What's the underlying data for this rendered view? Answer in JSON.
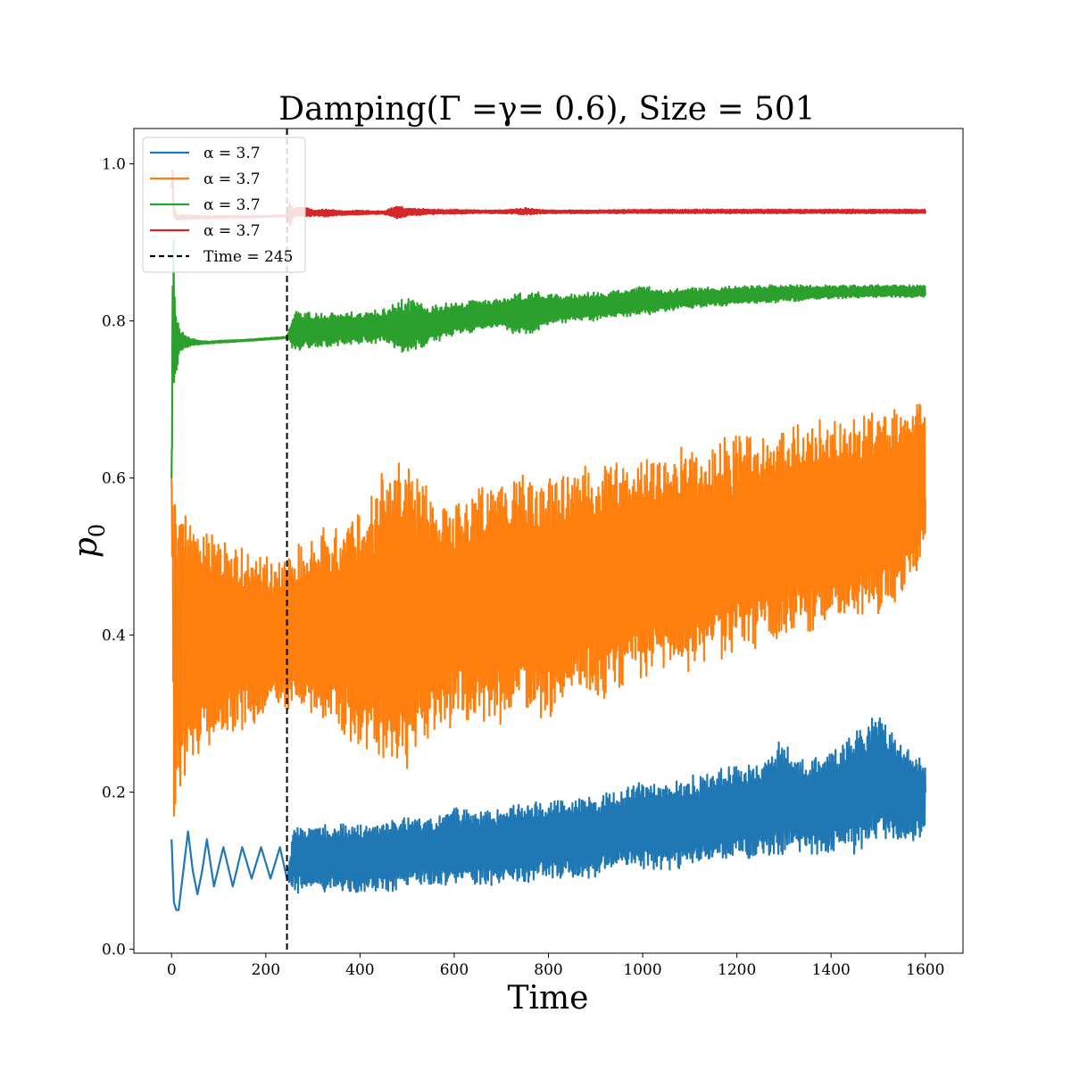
{
  "chart_data": {
    "type": "line",
    "title": "Damping(Γ =γ= 0.6), Size = 501",
    "xlabel": "Time",
    "ylabel": "p",
    "ylabel_subscript": "0",
    "xlim": [
      -80,
      1680
    ],
    "ylim": [
      -0.005,
      1.045
    ],
    "x_ticks": [
      0,
      200,
      400,
      600,
      800,
      1000,
      1200,
      1400,
      1600
    ],
    "x_tick_labels": [
      "0",
      "200",
      "400",
      "600",
      "800",
      "1000",
      "1200",
      "1400",
      "1600"
    ],
    "y_ticks": [
      0.0,
      0.2,
      0.4,
      0.6,
      0.8,
      1.0
    ],
    "y_tick_labels": [
      "0.0",
      "0.2",
      "0.4",
      "0.6",
      "0.8",
      "1.0"
    ],
    "grid": false,
    "legend_position": "top-left",
    "vline": {
      "x": 245,
      "label": "Time = 245",
      "color": "#000000",
      "style": "dashed"
    },
    "series": [
      {
        "name": "α = 3.7",
        "color": "#1f77b4",
        "x": [
          0,
          5,
          10,
          15,
          25,
          35,
          45,
          55,
          65,
          75,
          90,
          110,
          130,
          150,
          170,
          190,
          210,
          230,
          245,
          260,
          280,
          300,
          350,
          400,
          450,
          500,
          550,
          600,
          650,
          700,
          750,
          800,
          850,
          900,
          950,
          1000,
          1050,
          1100,
          1150,
          1200,
          1250,
          1300,
          1350,
          1400,
          1450,
          1500,
          1550,
          1600
        ],
        "y": [
          0.14,
          0.06,
          0.05,
          0.05,
          0.1,
          0.15,
          0.1,
          0.07,
          0.1,
          0.14,
          0.08,
          0.13,
          0.08,
          0.13,
          0.09,
          0.13,
          0.09,
          0.13,
          0.09,
          0.12,
          0.1,
          0.11,
          0.1,
          0.11,
          0.12,
          0.11,
          0.11,
          0.12,
          0.11,
          0.12,
          0.12,
          0.13,
          0.12,
          0.13,
          0.13,
          0.14,
          0.14,
          0.15,
          0.15,
          0.15,
          0.16,
          0.17,
          0.16,
          0.17,
          0.18,
          0.19,
          0.18,
          0.16
        ],
        "lower": [
          0.14,
          0.06,
          0.05,
          0.05,
          0.1,
          0.15,
          0.1,
          0.07,
          0.1,
          0.14,
          0.08,
          0.13,
          0.08,
          0.13,
          0.09,
          0.13,
          0.09,
          0.13,
          0.09,
          0.07,
          0.07,
          0.07,
          0.07,
          0.07,
          0.07,
          0.08,
          0.08,
          0.08,
          0.08,
          0.08,
          0.08,
          0.09,
          0.09,
          0.09,
          0.1,
          0.1,
          0.1,
          0.1,
          0.11,
          0.11,
          0.11,
          0.12,
          0.12,
          0.12,
          0.12,
          0.13,
          0.13,
          0.14
        ],
        "upper": [
          0.14,
          0.06,
          0.05,
          0.05,
          0.1,
          0.15,
          0.1,
          0.07,
          0.1,
          0.14,
          0.08,
          0.13,
          0.08,
          0.13,
          0.09,
          0.13,
          0.09,
          0.13,
          0.09,
          0.16,
          0.16,
          0.16,
          0.16,
          0.16,
          0.17,
          0.17,
          0.17,
          0.18,
          0.18,
          0.18,
          0.19,
          0.19,
          0.19,
          0.2,
          0.2,
          0.22,
          0.22,
          0.22,
          0.23,
          0.24,
          0.24,
          0.27,
          0.24,
          0.26,
          0.28,
          0.31,
          0.26,
          0.24
        ]
      },
      {
        "name": "α = 3.7",
        "color": "#ff7f0e",
        "x": [
          0,
          5,
          10,
          20,
          30,
          40,
          50,
          60,
          80,
          100,
          130,
          160,
          200,
          245,
          260,
          300,
          350,
          400,
          450,
          500,
          550,
          600,
          650,
          700,
          750,
          800,
          850,
          900,
          950,
          1000,
          1050,
          1100,
          1150,
          1200,
          1250,
          1300,
          1350,
          1400,
          1450,
          1500,
          1550,
          1600
        ],
        "y": [
          0.6,
          0.35,
          0.36,
          0.37,
          0.37,
          0.37,
          0.37,
          0.38,
          0.38,
          0.38,
          0.39,
          0.39,
          0.39,
          0.4,
          0.4,
          0.4,
          0.4,
          0.4,
          0.41,
          0.41,
          0.42,
          0.42,
          0.43,
          0.43,
          0.44,
          0.44,
          0.45,
          0.46,
          0.46,
          0.47,
          0.48,
          0.49,
          0.5,
          0.51,
          0.52,
          0.53,
          0.54,
          0.55,
          0.56,
          0.57,
          0.58,
          0.6
        ],
        "lower": [
          0.6,
          0.15,
          0.17,
          0.19,
          0.21,
          0.22,
          0.23,
          0.24,
          0.25,
          0.26,
          0.27,
          0.28,
          0.29,
          0.3,
          0.3,
          0.28,
          0.27,
          0.25,
          0.23,
          0.22,
          0.27,
          0.28,
          0.28,
          0.28,
          0.3,
          0.29,
          0.31,
          0.31,
          0.33,
          0.34,
          0.35,
          0.35,
          0.36,
          0.38,
          0.38,
          0.39,
          0.4,
          0.41,
          0.41,
          0.42,
          0.44,
          0.5
        ],
        "upper": [
          0.6,
          0.58,
          0.57,
          0.56,
          0.56,
          0.55,
          0.55,
          0.54,
          0.53,
          0.53,
          0.52,
          0.51,
          0.5,
          0.5,
          0.51,
          0.54,
          0.55,
          0.57,
          0.62,
          0.63,
          0.59,
          0.58,
          0.59,
          0.6,
          0.61,
          0.61,
          0.62,
          0.62,
          0.63,
          0.63,
          0.64,
          0.64,
          0.65,
          0.66,
          0.66,
          0.67,
          0.67,
          0.68,
          0.68,
          0.69,
          0.69,
          0.7
        ]
      },
      {
        "name": "α = 3.7",
        "color": "#2ca02c",
        "x": [
          0,
          3,
          6,
          10,
          15,
          20,
          30,
          40,
          60,
          80,
          100,
          150,
          200,
          245,
          260,
          300,
          350,
          400,
          450,
          500,
          550,
          600,
          650,
          700,
          750,
          800,
          850,
          900,
          950,
          1000,
          1050,
          1100,
          1150,
          1200,
          1250,
          1300,
          1350,
          1400,
          1450,
          1500,
          1550,
          1600
        ],
        "y": [
          0.6,
          0.78,
          0.78,
          0.78,
          0.775,
          0.772,
          0.772,
          0.772,
          0.772,
          0.772,
          0.773,
          0.775,
          0.777,
          0.779,
          0.78,
          0.785,
          0.788,
          0.79,
          0.793,
          0.797,
          0.8,
          0.805,
          0.808,
          0.812,
          0.815,
          0.818,
          0.82,
          0.822,
          0.824,
          0.826,
          0.828,
          0.829,
          0.83,
          0.831,
          0.832,
          0.833,
          0.834,
          0.834,
          0.835,
          0.835,
          0.836,
          0.837
        ],
        "lower": [
          0.6,
          0.68,
          0.71,
          0.73,
          0.75,
          0.76,
          0.765,
          0.768,
          0.77,
          0.771,
          0.772,
          0.774,
          0.776,
          0.778,
          0.76,
          0.765,
          0.768,
          0.77,
          0.772,
          0.755,
          0.77,
          0.78,
          0.785,
          0.79,
          0.778,
          0.795,
          0.798,
          0.8,
          0.805,
          0.807,
          0.812,
          0.815,
          0.818,
          0.82,
          0.822,
          0.824,
          0.826,
          0.828,
          0.829,
          0.83,
          0.83,
          0.83
        ],
        "upper": [
          0.6,
          0.97,
          0.86,
          0.82,
          0.8,
          0.79,
          0.782,
          0.778,
          0.775,
          0.774,
          0.775,
          0.776,
          0.778,
          0.78,
          0.815,
          0.81,
          0.812,
          0.813,
          0.815,
          0.832,
          0.82,
          0.825,
          0.828,
          0.83,
          0.84,
          0.835,
          0.835,
          0.837,
          0.84,
          0.845,
          0.84,
          0.842,
          0.843,
          0.845,
          0.845,
          0.847,
          0.845,
          0.846,
          0.845,
          0.846,
          0.846,
          0.845
        ]
      },
      {
        "name": "α = 3.7",
        "color": "#d62728",
        "x": [
          0,
          2,
          5,
          10,
          30,
          60,
          100,
          150,
          200,
          245,
          250,
          260,
          280,
          300,
          330,
          350,
          380,
          400,
          430,
          450,
          480,
          500,
          550,
          600,
          650,
          700,
          750,
          800,
          900,
          1000,
          1100,
          1200,
          1300,
          1400,
          1500,
          1600
        ],
        "y": [
          0.97,
          1.0,
          0.94,
          0.932,
          0.932,
          0.932,
          0.932,
          0.933,
          0.933,
          0.934,
          0.93,
          0.938,
          0.939,
          0.937,
          0.937,
          0.938,
          0.937,
          0.938,
          0.938,
          0.938,
          0.938,
          0.938,
          0.939,
          0.939,
          0.939,
          0.939,
          0.939,
          0.939,
          0.939,
          0.94,
          0.94,
          0.94,
          0.94,
          0.94,
          0.94,
          0.94
        ],
        "lower": [
          0.97,
          0.97,
          0.93,
          0.928,
          0.929,
          0.93,
          0.931,
          0.931,
          0.932,
          0.933,
          0.919,
          0.933,
          0.931,
          0.934,
          0.932,
          0.934,
          0.935,
          0.935,
          0.936,
          0.936,
          0.93,
          0.933,
          0.936,
          0.936,
          0.937,
          0.937,
          0.935,
          0.937,
          0.937,
          0.937,
          0.937,
          0.937,
          0.937,
          0.937,
          0.937,
          0.937
        ],
        "upper": [
          0.97,
          1.003,
          0.95,
          0.936,
          0.935,
          0.934,
          0.934,
          0.934,
          0.934,
          0.935,
          0.951,
          0.943,
          0.947,
          0.941,
          0.943,
          0.941,
          0.94,
          0.941,
          0.94,
          0.94,
          0.947,
          0.944,
          0.942,
          0.942,
          0.941,
          0.941,
          0.944,
          0.941,
          0.941,
          0.942,
          0.942,
          0.942,
          0.942,
          0.942,
          0.942,
          0.942
        ]
      }
    ]
  }
}
